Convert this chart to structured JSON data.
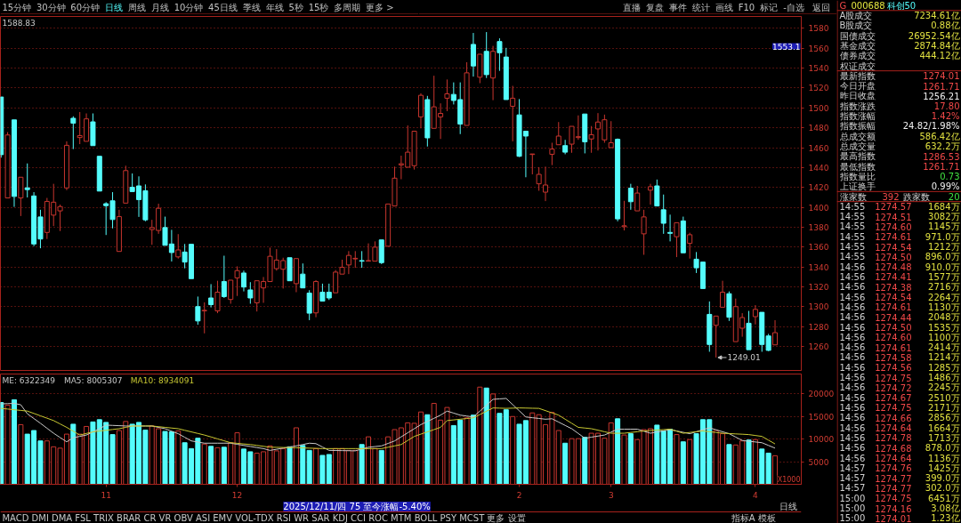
{
  "chart_data": [
    {
      "type": "other",
      "annotations": [
        "15分钟",
        "30分钟",
        "60分钟",
        "日线",
        "周线",
        "月线",
        "10分钟",
        "45日线",
        "季线",
        "年线",
        "5秒",
        "15秒",
        "多周期",
        "更多 >"
      ],
      "colors": [
        "#c0c0c0",
        "#c0c0c0",
        "#c0c0c0",
        "#54fcfc",
        "#c0c0c0",
        "#c0c0c0",
        "#c0c0c0",
        "#c0c0c0",
        "#c0c0c0",
        "#c0c0c0",
        "#c0c0c0",
        "#c0c0c0",
        "#c0c0c0",
        "#c0c0c0"
      ]
    },
    {
      "type": "other",
      "annotations": [
        "直播",
        "复盘",
        "事件",
        "统计",
        "画线",
        "F10",
        "标记",
        "-自选",
        "返回"
      ],
      "colors": [
        "#c0c0c0",
        "#c0c0c0",
        "#c0c0c0",
        "#c0c0c0",
        "#c0c0c0",
        "#c0c0c0",
        "#c0c0c0",
        "#c0c0c0",
        "#c0c0c0"
      ]
    },
    {
      "type": "candlestick",
      "categories": [
        null,
        null,
        null,
        null,
        null,
        null,
        null,
        null,
        null,
        null,
        null,
        null,
        null,
        null,
        null,
        null,
        "11",
        null,
        null,
        null,
        null,
        null,
        null,
        null,
        null,
        null,
        null,
        null,
        null,
        null,
        null,
        null,
        null,
        null,
        null,
        null,
        "12",
        null,
        null,
        null,
        null,
        null,
        null,
        null,
        null,
        null,
        null,
        null,
        null,
        null,
        null,
        null,
        null,
        null,
        null,
        null,
        null,
        null,
        null,
        null,
        null,
        null,
        null,
        null,
        null,
        null,
        null,
        null,
        null,
        null,
        null,
        null,
        null,
        null,
        null,
        null,
        null,
        null,
        null,
        "2",
        null,
        null,
        null,
        null,
        null,
        null,
        null,
        null,
        null,
        null,
        null,
        null,
        null,
        "3",
        null,
        null,
        null,
        null,
        null,
        null,
        null,
        null,
        null,
        null,
        null,
        null,
        null,
        null,
        null,
        null,
        null,
        null,
        null,
        null,
        null,
        "4",
        null,
        null,
        null
      ],
      "ohlc": [
        [
          1511,
          1511,
          1450,
          1453
        ],
        [
          1409.5,
          1475.7,
          1409.5,
          1472.8
        ],
        [
          1488,
          1488,
          1400.5,
          1411
        ],
        [
          1409.5,
          1430.3,
          1391.3,
          1430.3
        ],
        [
          1419.6,
          1444.2,
          1410,
          1417.9
        ],
        [
          1411.5,
          1415.3,
          1361,
          1363.2
        ],
        [
          1390.4,
          1397.6,
          1358.9,
          1368.2
        ],
        [
          1374.8,
          1409.5,
          1368.2,
          1406
        ],
        [
          1392.2,
          1423.7,
          1381.2,
          1405.2
        ],
        [
          1396.5,
          1402.8,
          1376.2,
          1400.8
        ],
        [
          1419.6,
          1466.4,
          1417.3,
          1462.4
        ],
        [
          1489.6,
          1491.6,
          1458.6,
          1484.7
        ],
        [
          1470.2,
          1495.9,
          1463.6,
          1472.2
        ],
        [
          1466.4,
          1494.5,
          1466.4,
          1489
        ],
        [
          1486,
          1494.5,
          1462.1,
          1462.1
        ],
        [
          1451.4,
          1451.4,
          1416.4,
          1416.4
        ],
        [
          1403.7,
          1405.2,
          1372.2,
          1401.7
        ],
        [
          1406.6,
          1415.3,
          1378.9,
          1387.8
        ],
        [
          1355.7,
          1397.6,
          1355.7,
          1390.7
        ],
        [
          1404.3,
          1441.9,
          1404.3,
          1437
        ],
        [
          1420.2,
          1434.1,
          1415.9,
          1415.9
        ],
        [
          1421.6,
          1431.2,
          1390.4,
          1407.8
        ],
        [
          1416.7,
          1423.1,
          1386,
          1387.5
        ],
        [
          1377.7,
          1387.5,
          1362.4,
          1379.7
        ],
        [
          1376.8,
          1403.7,
          1373.4,
          1399.1
        ],
        [
          1379.7,
          1390.7,
          1361.8,
          1361.8
        ],
        [
          1363.2,
          1377.4,
          1345.6,
          1354.6
        ],
        [
          1350.2,
          1373.1,
          1348.5,
          1357.2
        ],
        [
          1355.1,
          1363.2,
          1338.7,
          1345
        ],
        [
          1362.9,
          1362.9,
          1328.3,
          1328.3
        ],
        [
          1300.2,
          1310.3,
          1282,
          1285.8
        ],
        [
          1295.9,
          1304.5,
          1273.3,
          1296.5
        ],
        [
          1308.9,
          1322.8,
          1299.4,
          1302.2
        ],
        [
          1295.9,
          1326.2,
          1293.6,
          1314.7
        ],
        [
          1325.4,
          1351.4,
          1308.9,
          1310.3
        ],
        [
          1307.4,
          1326.8,
          1303.1,
          1326.8
        ],
        [
          1329.1,
          1340.7,
          1310.9,
          1336.4
        ],
        [
          1334,
          1336.4,
          1315.5,
          1319.9
        ],
        [
          1317,
          1324.8,
          1303.1,
          1308.9
        ],
        [
          1304,
          1326.2,
          1295.3,
          1326.2
        ],
        [
          1319,
          1330,
          1304,
          1325.4
        ],
        [
          1325.4,
          1359.5,
          1325.4,
          1350.8
        ],
        [
          1338.4,
          1358,
          1336.4,
          1347
        ],
        [
          1337.8,
          1349.4,
          1318.4,
          1346.5
        ],
        [
          1349.4,
          1349.4,
          1326.2,
          1326.2
        ],
        [
          1323.3,
          1348.5,
          1314.7,
          1348.5
        ],
        [
          1332.9,
          1343.6,
          1319,
          1319
        ],
        [
          1313.8,
          1316.7,
          1286.6,
          1293.6
        ],
        [
          1293.9,
          1326.8,
          1289.5,
          1325.4
        ],
        [
          1314.7,
          1323.3,
          1305.7,
          1305.7
        ],
        [
          1314.7,
          1323.3,
          1306.9,
          1308.9
        ],
        [
          1314.1,
          1337,
          1314.1,
          1334.9
        ],
        [
          1332.9,
          1347.4,
          1332.9,
          1339.8
        ],
        [
          1342.1,
          1356,
          1332.9,
          1351.7
        ],
        [
          1348.2,
          1356,
          1339.2,
          1348.8
        ],
        [
          1346.5,
          1356,
          1339.2,
          1345.9
        ],
        [
          1345.9,
          1363.8,
          1345.9,
          1346.5
        ],
        [
          1345.9,
          1365.8,
          1345.9,
          1360
        ],
        [
          1367.3,
          1367.3,
          1343,
          1344.4
        ],
        [
          1360.9,
          1403.4,
          1360.9,
          1403.4
        ],
        [
          1401.4,
          1441,
          1401.4,
          1429.4
        ],
        [
          1442.7,
          1452,
          1428.3,
          1443.9
        ],
        [
          1440.4,
          1482.4,
          1440.4,
          1455.5
        ],
        [
          1441.9,
          1476.6,
          1438,
          1476.6
        ],
        [
          1491,
          1514.7,
          1479.5,
          1512.7
        ],
        [
          1508.4,
          1512.1,
          1461.2,
          1469.9
        ],
        [
          1479.5,
          1532.4,
          1479.5,
          1501.1
        ],
        [
          1491,
          1504.6,
          1468.8,
          1494.5
        ],
        [
          1509.8,
          1528.6,
          1496.8,
          1514.2
        ],
        [
          1513.6,
          1525.7,
          1503.5,
          1507.5
        ],
        [
          1508.4,
          1525.7,
          1473.7,
          1483.8
        ],
        [
          1482.4,
          1546,
          1482.4,
          1535.3
        ],
        [
          1563.9,
          1575.4,
          1531.5,
          1542.2
        ],
        [
          1530.9,
          1554,
          1524.9,
          1554
        ],
        [
          1556.9,
          1576.3,
          1530.1,
          1533.5
        ],
        [
          1530.1,
          1562.4,
          1507.8,
          1556.9
        ],
        [
          1566.8,
          1570,
          1537.3,
          1555.5
        ],
        [
          1551.2,
          1560.4,
          1508.4,
          1508.4
        ],
        [
          1501.7,
          1522.2,
          1466.4,
          1509.8
        ],
        [
          1493,
          1508.9,
          1450.6,
          1451.4
        ],
        [
          1476.6,
          1476.6,
          1430.3,
          1471.7
        ],
        [
          1453.2,
          1453.7,
          1433.2,
          1453.7
        ],
        [
          1423.7,
          1440.4,
          1416.7,
          1433.2
        ],
        [
          1415.3,
          1441,
          1406.3,
          1422.5
        ],
        [
          1453.4,
          1465,
          1442.5,
          1458.6
        ],
        [
          1463,
          1485.8,
          1463,
          1471.7
        ],
        [
          1462.1,
          1467.9,
          1453.4,
          1455.5
        ],
        [
          1463.6,
          1481.5,
          1454.9,
          1481.5
        ],
        [
          1470.2,
          1492.5,
          1467.9,
          1471.1
        ],
        [
          1493.9,
          1493.9,
          1454.3,
          1465.9
        ],
        [
          1468.8,
          1481.8,
          1454.9,
          1473.1
        ],
        [
          1478.9,
          1494.8,
          1457.2,
          1485.8
        ],
        [
          1467.9,
          1493.3,
          1465,
          1488.1
        ],
        [
          1460.1,
          1486.7,
          1460.1,
          1465
        ],
        [
          1468.5,
          1469.3,
          1386,
          1388.4
        ],
        [
          1380.6,
          1406.6,
          1376.8,
          1381.5
        ],
        [
          1419.3,
          1423.7,
          1397.6,
          1405.7
        ],
        [
          1396.5,
          1421.6,
          1396.5,
          1414.4
        ],
        [
          1373.4,
          1397.6,
          1352.3,
          1390.4
        ],
        [
          1417.3,
          1423.7,
          1402.8,
          1420.8
        ],
        [
          1421.6,
          1428,
          1401.4,
          1401.4
        ],
        [
          1397.6,
          1412.9,
          1373.4,
          1384
        ],
        [
          1374.8,
          1392.7,
          1365.8,
          1373.9
        ],
        [
          1370.5,
          1384.6,
          1350,
          1384.6
        ],
        [
          1386.4,
          1390.7,
          1354.3,
          1354.3
        ],
        [
          1363.8,
          1374.5,
          1348.5,
          1372.5
        ],
        [
          1347.9,
          1355.1,
          1334,
          1339.2
        ],
        [
          1345,
          1345,
          1318.4,
          1318.4
        ],
        [
          1292.4,
          1305.4,
          1254.8,
          1262.1
        ],
        [
          1281.4,
          1290.7,
          1249.01,
          1290.7
        ],
        [
          1299.6,
          1326.2,
          1299.6,
          1314.7
        ],
        [
          1313.2,
          1315.5,
          1285.8,
          1289.5
        ],
        [
          1265,
          1308.3,
          1265,
          1300.2
        ],
        [
          1278.5,
          1293.6,
          1269.9,
          1289.2
        ],
        [
          1283.5,
          1295.9,
          1256.9,
          1256.9
        ],
        [
          1290.1,
          1301.7,
          1282.3,
          1297.4
        ],
        [
          1294.5,
          1294.5,
          1254.8,
          1262.1
        ],
        [
          1270.7,
          1272.8,
          1255.4,
          1256.21
        ],
        [
          1261.71,
          1286.53,
          1261.71,
          1274.01
        ]
      ],
      "colors": [
        "#54fcfc",
        "#c8352e",
        "#54fcfc",
        "#c8352e",
        "#54fcfc",
        "#54fcfc",
        "#54fcfc",
        "#c8352e",
        "#c8352e",
        "#c8352e",
        "#c8352e",
        "#54fcfc",
        "#c8352e",
        "#c8352e",
        "#54fcfc",
        "#54fcfc",
        "#54fcfc",
        "#54fcfc",
        "#c8352e",
        "#c8352e",
        "#54fcfc",
        "#54fcfc",
        "#54fcfc",
        "#c8352e",
        "#c8352e",
        "#54fcfc",
        "#54fcfc",
        "#c8352e",
        "#54fcfc",
        "#54fcfc",
        "#54fcfc",
        "#c8352e",
        "#54fcfc",
        "#c8352e",
        "#54fcfc",
        "#c8352e",
        "#c8352e",
        "#54fcfc",
        "#54fcfc",
        "#c8352e",
        "#c8352e",
        "#c8352e",
        "#c8352e",
        "#c8352e",
        "#54fcfc",
        "#c8352e",
        "#54fcfc",
        "#54fcfc",
        "#c8352e",
        "#54fcfc",
        "#54fcfc",
        "#c8352e",
        "#c8352e",
        "#c8352e",
        "#c8352e",
        "#54fcfc",
        "#c8352e",
        "#c8352e",
        "#54fcfc",
        "#c8352e",
        "#c8352e",
        "#c8352e",
        "#c8352e",
        "#c8352e",
        "#c8352e",
        "#54fcfc",
        "#c8352e",
        "#c8352e",
        "#c8352e",
        "#54fcfc",
        "#54fcfc",
        "#c8352e",
        "#54fcfc",
        "#c8352e",
        "#54fcfc",
        "#c8352e",
        "#54fcfc",
        "#54fcfc",
        "#c8352e",
        "#54fcfc",
        "#54fcfc",
        "#c8352e",
        "#c8352e",
        "#c8352e",
        "#c8352e",
        "#c8352e",
        "#54fcfc",
        "#c8352e",
        "#c8352e",
        "#54fcfc",
        "#c8352e",
        "#c8352e",
        "#c8352e",
        "#c8352e",
        "#54fcfc",
        "#c8352e",
        "#54fcfc",
        "#c8352e",
        "#c8352e",
        "#c8352e",
        "#54fcfc",
        "#54fcfc",
        "#54fcfc",
        "#c8352e",
        "#54fcfc",
        "#c8352e",
        "#54fcfc",
        "#54fcfc",
        "#54fcfc",
        "#c8352e",
        "#c8352e",
        "#54fcfc",
        "#c8352e",
        "#c8352e",
        "#54fcfc",
        "#c8352e",
        "#54fcfc",
        "#54fcfc",
        "#c8352e"
      ],
      "ylim": [
        1236,
        1592
      ],
      "yticks": [
        1260,
        1280,
        1300,
        1320,
        1340,
        1360,
        1380,
        1400,
        1420,
        1440,
        1460,
        1480,
        1500,
        1520,
        1540,
        1560,
        1580
      ],
      "grid": "y",
      "tick_labels": "y",
      "annotations": [
        "1588.83",
        "1249.01",
        "1553.1"
      ]
    },
    {
      "type": "bar",
      "categories": [
        null,
        null,
        null,
        null,
        null,
        null,
        null,
        null,
        null,
        null,
        null,
        null,
        null,
        null,
        null,
        null,
        "11",
        null,
        null,
        null,
        null,
        null,
        null,
        null,
        null,
        null,
        null,
        null,
        null,
        null,
        null,
        null,
        null,
        null,
        null,
        null,
        "12",
        null,
        null,
        null,
        null,
        null,
        null,
        null,
        null,
        null,
        null,
        null,
        null,
        null,
        null,
        null,
        null,
        null,
        null,
        null,
        null,
        null,
        null,
        null,
        null,
        null,
        null,
        null,
        null,
        null,
        null,
        null,
        null,
        null,
        null,
        null,
        null,
        null,
        null,
        null,
        null,
        null,
        null,
        "2",
        null,
        null,
        null,
        null,
        null,
        null,
        null,
        null,
        null,
        null,
        null,
        null,
        null,
        "3",
        null,
        null,
        null,
        null,
        null,
        null,
        null,
        null,
        null,
        null,
        null,
        null,
        null,
        null,
        null,
        null,
        null,
        null,
        null,
        null,
        null,
        "4",
        null,
        null,
        null
      ],
      "ylim": [
        0,
        24400
      ],
      "yticks": [
        5000,
        10000,
        15000,
        20000
      ],
      "grid": "y",
      "legend": "top left",
      "ylabel": "X1000",
      "series": [
        {
          "type": "bar",
          "values": [
            18100,
            17500,
            18700,
            13200,
            11100,
            11900,
            9600,
            9600,
            8300,
            8000,
            11100,
            13300,
            11100,
            12800,
            13800,
            14300,
            13700,
            11000,
            11900,
            13900,
            13300,
            13700,
            12000,
            12900,
            12300,
            11700,
            11600,
            11800,
            9200,
            7900,
            10200,
            8900,
            8400,
            8100,
            8200,
            9200,
            11400,
            7800,
            7200,
            6900,
            7200,
            8500,
            7400,
            7900,
            8300,
            12500,
            8600,
            7500,
            7900,
            6400,
            6600,
            7900,
            7900,
            7500,
            7500,
            8800,
            10500,
            7900,
            7500,
            10500,
            12100,
            12500,
            13600,
            13500,
            16000,
            15400,
            17900,
            14200,
            17000,
            13000,
            14200,
            14700,
            15300,
            21500,
            21300,
            20000,
            15700,
            16500,
            15000,
            13300,
            14100,
            15800,
            15400,
            13200,
            15900,
            11900,
            9100,
            10100,
            10100,
            10400,
            11300,
            11300,
            10200,
            13600,
            14500,
            10900,
            11200,
            9900,
            12100,
            12300,
            13100,
            11800,
            12200,
            11000,
            9400,
            9900,
            11200,
            14300,
            14300,
            11900,
            11200,
            8800,
            8700,
            9600,
            9800,
            9900,
            7800,
            6900,
            6322
          ],
          "colors": [
            "#54fcfc",
            "#c8352e",
            "#54fcfc",
            "#c8352e",
            "#54fcfc",
            "#54fcfc",
            "#54fcfc",
            "#c8352e",
            "#c8352e",
            "#c8352e",
            "#c8352e",
            "#54fcfc",
            "#c8352e",
            "#c8352e",
            "#54fcfc",
            "#54fcfc",
            "#54fcfc",
            "#54fcfc",
            "#c8352e",
            "#c8352e",
            "#54fcfc",
            "#54fcfc",
            "#54fcfc",
            "#c8352e",
            "#c8352e",
            "#54fcfc",
            "#54fcfc",
            "#c8352e",
            "#54fcfc",
            "#54fcfc",
            "#54fcfc",
            "#c8352e",
            "#54fcfc",
            "#c8352e",
            "#54fcfc",
            "#c8352e",
            "#c8352e",
            "#54fcfc",
            "#54fcfc",
            "#c8352e",
            "#c8352e",
            "#c8352e",
            "#c8352e",
            "#c8352e",
            "#54fcfc",
            "#c8352e",
            "#54fcfc",
            "#54fcfc",
            "#c8352e",
            "#54fcfc",
            "#54fcfc",
            "#c8352e",
            "#c8352e",
            "#c8352e",
            "#c8352e",
            "#54fcfc",
            "#c8352e",
            "#c8352e",
            "#54fcfc",
            "#c8352e",
            "#c8352e",
            "#c8352e",
            "#c8352e",
            "#c8352e",
            "#c8352e",
            "#54fcfc",
            "#c8352e",
            "#c8352e",
            "#c8352e",
            "#54fcfc",
            "#54fcfc",
            "#c8352e",
            "#54fcfc",
            "#c8352e",
            "#54fcfc",
            "#c8352e",
            "#54fcfc",
            "#54fcfc",
            "#c8352e",
            "#54fcfc",
            "#54fcfc",
            "#c8352e",
            "#c8352e",
            "#c8352e",
            "#c8352e",
            "#c8352e",
            "#54fcfc",
            "#c8352e",
            "#c8352e",
            "#54fcfc",
            "#c8352e",
            "#c8352e",
            "#c8352e",
            "#c8352e",
            "#54fcfc",
            "#c8352e",
            "#54fcfc",
            "#c8352e",
            "#c8352e",
            "#c8352e",
            "#54fcfc",
            "#54fcfc",
            "#54fcfc",
            "#c8352e",
            "#54fcfc",
            "#c8352e",
            "#54fcfc",
            "#54fcfc",
            "#54fcfc",
            "#c8352e",
            "#c8352e",
            "#54fcfc",
            "#c8352e",
            "#c8352e",
            "#54fcfc",
            "#c8352e",
            "#54fcfc",
            "#54fcfc",
            "#c8352e"
          ]
        },
        {
          "type": "line",
          "name": "MA5: 8005307",
          "color": "#c8c8c8",
          "values": [
            17800,
            17850,
            17900,
            17600,
            15600,
            14550,
            13500,
            12400,
            11300,
            10350,
            9400,
            10300,
            10600,
            10900,
            11600,
            12300,
            13100,
            13030,
            12970,
            12900,
            12900,
            12900,
            12900,
            12900,
            12600,
            12300,
            11750,
            11200,
            10400,
            9600,
            9350,
            9100,
            9100,
            9100,
            9100,
            9100,
            8850,
            8600,
            8370,
            8130,
            7900,
            7500,
            7750,
            8000,
            8250,
            8500,
            8800,
            9100,
            9000,
            8250,
            7500,
            7480,
            7450,
            7430,
            7400,
            7800,
            8200,
            8350,
            8500,
            9050,
            9600,
            10500,
            11400,
            12300,
            13200,
            13900,
            14600,
            15300,
            16200,
            15750,
            15300,
            15100,
            14900,
            16200,
            17500,
            18800,
            18900,
            19000,
            17630,
            16270,
            14900,
            14730,
            14570,
            14400,
            14500,
            13770,
            13030,
            12300,
            11250,
            10200,
            10430,
            10670,
            10900,
            11550,
            12200,
            12200,
            12200,
            12200,
            11750,
            11300,
            11570,
            11830,
            12100,
            11800,
            11500,
            11200,
            11630,
            12070,
            12500,
            12070,
            11630,
            11200,
            10450,
            9700,
            9530,
            9370,
            9200,
            8600,
            8005
          ]
        },
        {
          "type": "line",
          "name": "MA10: 8934091",
          "color": "#c8c832",
          "values": [
            16800,
            16650,
            16500,
            16350,
            16200,
            15680,
            15150,
            14630,
            14100,
            13350,
            12600,
            11750,
            10900,
            11250,
            11600,
            11780,
            11950,
            12130,
            12300,
            12600,
            12900,
            12900,
            12900,
            12900,
            12750,
            12600,
            12450,
            12300,
            11950,
            11600,
            11250,
            10900,
            10480,
            10050,
            9630,
            9200,
            9070,
            8930,
            8800,
            8600,
            8400,
            8200,
            8180,
            8150,
            8130,
            8100,
            8050,
            8000,
            7950,
            7900,
            7900,
            7900,
            7900,
            7900,
            7900,
            7900,
            7900,
            7900,
            7900,
            8200,
            8500,
            8800,
            9700,
            10600,
            11100,
            11600,
            12100,
            12600,
            14100,
            14250,
            14400,
            14550,
            14700,
            15430,
            16170,
            16900,
            16850,
            16800,
            16850,
            16900,
            16870,
            16830,
            16800,
            16300,
            15800,
            15300,
            14400,
            13500,
            12600,
            12450,
            12300,
            11970,
            11630,
            11300,
            11300,
            11300,
            11470,
            11630,
            11800,
            11900,
            12000,
            12100,
            12200,
            11750,
            11300,
            11470,
            11630,
            11800,
            11630,
            11470,
            11300,
            11230,
            11150,
            11080,
            11000,
            10800,
            10600,
            9770,
            8934
          ]
        }
      ],
      "annotations": [
        "ME: 6322349",
        "2025/12/11/四 75 至今涨幅-5.40%",
        "MACD DMI DMA FSL TRIX BRAR CR VR OBV ASI EMV VOL-TDX RSI WR SAR KDJ CCI ROC MTM BOLL PSY MCST 更多 设置",
        "日线",
        "指标A 模板"
      ]
    },
    {
      "type": "other",
      "annotations": [
        "G\t000688\t科创50",
        "A股成交\t7234.61亿",
        "B股成交\t0.88亿",
        "国债成交\t26952.54亿",
        "基金成交\t2874.84亿",
        "债券成交\t444.12亿",
        "权证成交",
        "最新指数\t1274.01",
        "今日开盘\t1261.71",
        "昨日收盘\t1256.21",
        "指数涨跌\t17.80",
        "指数涨幅\t1.42%",
        "指数振幅\t24.82/1.98%",
        "总成交额\t586.42亿",
        "总成交量\t632.2万",
        "最高指数\t1286.53",
        "最低指数\t1261.71",
        "指数量比\t0.73",
        "上证换手\t0.99%",
        "涨家数\t392\t跌家数\t20",
        "14:55\t1274.57\t1684万",
        "14:55\t1274.51\t3082万",
        "14:55\t1274.60\t1145万",
        "14:55\t1274.61\t971.0万",
        "14:55\t1274.54\t1212万",
        "14:55\t1274.50\t896.0万",
        "14:56\t1274.48\t910.0万",
        "14:56\t1274.41\t1577万",
        "14:56\t1274.38\t2716万",
        "14:56\t1274.54\t2264万",
        "14:56\t1274.61\t1130万",
        "14:56\t1274.44\t2048万",
        "14:56\t1274.50\t1535万",
        "14:56\t1274.60\t1100万",
        "14:56\t1274.61\t2414万",
        "14:56\t1274.58\t1214万",
        "14:56\t1274.56\t1285万",
        "14:56\t1274.75\t1486万",
        "14:56\t1274.72\t2245万",
        "14:56\t1274.67\t2510万",
        "14:56\t1274.75\t2171万",
        "14:56\t1274.66\t2856万",
        "14:56\t1274.64\t1664万",
        "14:56\t1274.78\t1713万",
        "14:56\t1274.68\t878.0万",
        "14:56\t1274.64\t1136万",
        "14:57\t1274.76\t1425万",
        "14:57\t1274.77\t399.0万",
        "14:57\t1274.77\t302.0万",
        "15:00\t1274.75\t6451万",
        "15:00\t1274.16\t3.08亿",
        "15:00\t1274.01\t1.23亿"
      ],
      "colors": [
        [
          "#f04848",
          "#e8e840",
          "#54fcfc"
        ],
        [
          "#d0d0d0",
          "#e0e040"
        ],
        [
          "#d0d0d0",
          "#e0e040"
        ],
        [
          "#d0d0d0",
          "#e0e040"
        ],
        [
          "#d0d0d0",
          "#e0e040"
        ],
        [
          "#d0d0d0",
          "#e0e040"
        ],
        [
          "#d0d0d0"
        ],
        [
          "#d0d0d0",
          "#f04848"
        ],
        [
          "#d0d0d0",
          "#f04848"
        ],
        [
          "#d0d0d0",
          "#f0f0f0"
        ],
        [
          "#d0d0d0",
          "#f04848"
        ],
        [
          "#d0d0d0",
          "#f04848"
        ],
        [
          "#d0d0d0",
          "#f0f0f0"
        ],
        [
          "#d0d0d0",
          "#e0e040"
        ],
        [
          "#d0d0d0",
          "#e0e040"
        ],
        [
          "#d0d0d0",
          "#f04848"
        ],
        [
          "#d0d0d0",
          "#f04848"
        ],
        [
          "#d0d0d0",
          "#40e040"
        ],
        [
          "#d0d0d0",
          "#f0f0f0"
        ],
        [
          "#d0d0d0",
          "#f04848",
          "#d0d0d0",
          "#40e040"
        ],
        [
          "#d0d0d0",
          "#f04848",
          "#e0e040"
        ],
        [
          "#d0d0d0",
          "#f04848",
          "#e0e040"
        ],
        [
          "#d0d0d0",
          "#f04848",
          "#e0e040"
        ],
        [
          "#d0d0d0",
          "#f04848",
          "#e0e040"
        ],
        [
          "#d0d0d0",
          "#f04848",
          "#e0e040"
        ],
        [
          "#d0d0d0",
          "#f04848",
          "#e0e040"
        ],
        [
          "#d0d0d0",
          "#f04848",
          "#e0e040"
        ],
        [
          "#d0d0d0",
          "#f04848",
          "#e0e040"
        ],
        [
          "#d0d0d0",
          "#f04848",
          "#e0e040"
        ],
        [
          "#d0d0d0",
          "#f04848",
          "#e0e040"
        ],
        [
          "#d0d0d0",
          "#f04848",
          "#e0e040"
        ],
        [
          "#d0d0d0",
          "#f04848",
          "#e0e040"
        ],
        [
          "#d0d0d0",
          "#f04848",
          "#e0e040"
        ],
        [
          "#d0d0d0",
          "#f04848",
          "#e0e040"
        ],
        [
          "#d0d0d0",
          "#f04848",
          "#e0e040"
        ],
        [
          "#d0d0d0",
          "#f04848",
          "#e0e040"
        ],
        [
          "#d0d0d0",
          "#f04848",
          "#e0e040"
        ],
        [
          "#d0d0d0",
          "#f04848",
          "#e0e040"
        ],
        [
          "#d0d0d0",
          "#f04848",
          "#e0e040"
        ],
        [
          "#d0d0d0",
          "#f04848",
          "#e0e040"
        ],
        [
          "#d0d0d0",
          "#f04848",
          "#e0e040"
        ],
        [
          "#d0d0d0",
          "#f04848",
          "#e0e040"
        ],
        [
          "#d0d0d0",
          "#f04848",
          "#e0e040"
        ],
        [
          "#d0d0d0",
          "#f04848",
          "#e0e040"
        ],
        [
          "#d0d0d0",
          "#f04848",
          "#e0e040"
        ],
        [
          "#d0d0d0",
          "#f04848",
          "#e0e040"
        ],
        [
          "#d0d0d0",
          "#f04848",
          "#e0e040"
        ],
        [
          "#d0d0d0",
          "#f04848",
          "#e0e040"
        ],
        [
          "#d0d0d0",
          "#f04848",
          "#e0e040"
        ],
        [
          "#d0d0d0",
          "#f04848",
          "#e0e040"
        ],
        [
          "#d0d0d0",
          "#f04848",
          "#e0e040"
        ],
        [
          "#d0d0d0",
          "#f04848",
          "#e0e040"
        ]
      ]
    }
  ]
}
